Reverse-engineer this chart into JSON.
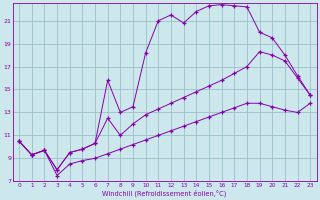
{
  "xlabel": "Windchill (Refroidissement éolien,°C)",
  "background_color": "#cce8ec",
  "grid_color": "#9bbfc8",
  "line_color": "#8800aa",
  "marker": "+",
  "xlim": [
    -0.5,
    23.5
  ],
  "ylim": [
    7,
    22.5
  ],
  "xticks": [
    0,
    1,
    2,
    3,
    4,
    5,
    6,
    7,
    8,
    9,
    10,
    11,
    12,
    13,
    14,
    15,
    16,
    17,
    18,
    19,
    20,
    21,
    22,
    23
  ],
  "yticks": [
    7,
    9,
    11,
    13,
    15,
    17,
    19,
    21
  ],
  "curve1_x": [
    0,
    1,
    2,
    3,
    4,
    5,
    6,
    7,
    8,
    9,
    10,
    11,
    12,
    13,
    14,
    15,
    16,
    17,
    18,
    19,
    20,
    21,
    22,
    23
  ],
  "curve1_y": [
    10.5,
    9.3,
    9.7,
    8.0,
    9.5,
    9.8,
    10.3,
    15.8,
    13.0,
    13.5,
    18.2,
    21.0,
    21.5,
    20.8,
    21.8,
    22.3,
    22.4,
    22.3,
    22.2,
    20.0,
    19.5,
    18.0,
    16.2,
    14.5
  ],
  "curve2_x": [
    0,
    1,
    2,
    3,
    4,
    5,
    6,
    7,
    8,
    9,
    10,
    11,
    12,
    13,
    14,
    15,
    16,
    17,
    18,
    19,
    20,
    21,
    22,
    23
  ],
  "curve2_y": [
    10.5,
    9.3,
    9.7,
    8.0,
    9.5,
    9.8,
    10.3,
    12.5,
    11.0,
    12.0,
    12.8,
    13.3,
    13.8,
    14.3,
    14.8,
    15.3,
    15.8,
    16.4,
    17.0,
    18.3,
    18.0,
    17.5,
    16.0,
    14.5
  ],
  "curve3_x": [
    0,
    1,
    2,
    3,
    4,
    5,
    6,
    7,
    8,
    9,
    10,
    11,
    12,
    13,
    14,
    15,
    16,
    17,
    18,
    19,
    20,
    21,
    22,
    23
  ],
  "curve3_y": [
    10.5,
    9.3,
    9.7,
    7.5,
    8.5,
    8.8,
    9.0,
    9.4,
    9.8,
    10.2,
    10.6,
    11.0,
    11.4,
    11.8,
    12.2,
    12.6,
    13.0,
    13.4,
    13.8,
    13.8,
    13.5,
    13.2,
    13.0,
    13.8
  ]
}
